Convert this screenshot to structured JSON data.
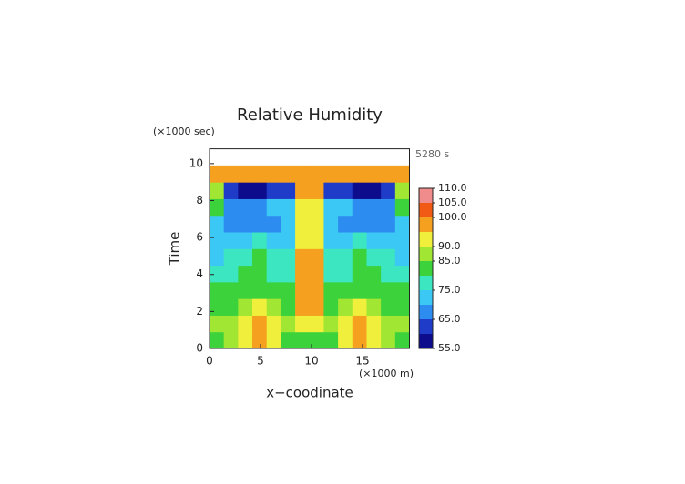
{
  "chart_data": {
    "type": "contour",
    "title": "Relative Humidity",
    "subtitle": "5280 s",
    "x_label": "x−coodinate",
    "x_unit": "(×1000 m)",
    "y_label": "Time",
    "y_unit": "(×1000 sec)",
    "xlim": [
      0,
      19.6
    ],
    "ylim": [
      0,
      10.8
    ],
    "xticks": [
      0,
      5,
      10,
      15
    ],
    "yticks": [
      0,
      2,
      4,
      6,
      8,
      10
    ],
    "x": [
      0.7,
      2.1,
      3.5,
      4.9,
      6.3,
      7.7,
      9.1,
      10.5,
      11.9,
      13.3,
      14.7,
      16.1,
      17.5,
      18.9
    ],
    "y": [
      0.45,
      1.35,
      2.25,
      3.15,
      4.05,
      4.95,
      5.85,
      6.75,
      7.65,
      8.55,
      9.45,
      10.35
    ],
    "z": [
      [
        82,
        88,
        92,
        97,
        92,
        84,
        82,
        82,
        84,
        92,
        97,
        92,
        88,
        82
      ],
      [
        86,
        88,
        90,
        96,
        93,
        88,
        92,
        92,
        88,
        93,
        96,
        90,
        88,
        86
      ],
      [
        83,
        84,
        88,
        90,
        88,
        84,
        95,
        95,
        84,
        88,
        90,
        88,
        84,
        83
      ],
      [
        80,
        81,
        82,
        83,
        82,
        80,
        97,
        97,
        80,
        82,
        83,
        82,
        81,
        80
      ],
      [
        78,
        78,
        80,
        80,
        79,
        78,
        98,
        98,
        78,
        79,
        80,
        80,
        78,
        78
      ],
      [
        74,
        75,
        78,
        82,
        77,
        75,
        95,
        95,
        75,
        77,
        82,
        78,
        75,
        74
      ],
      [
        72,
        72,
        74,
        76,
        74,
        72,
        93,
        93,
        72,
        74,
        76,
        74,
        72,
        72
      ],
      [
        70,
        68,
        68,
        68,
        68,
        70,
        92,
        92,
        70,
        68,
        68,
        68,
        68,
        70
      ],
      [
        80,
        68,
        68,
        68,
        70,
        72,
        92,
        92,
        72,
        70,
        68,
        68,
        68,
        80
      ],
      [
        86,
        60,
        57,
        57,
        60,
        63,
        95,
        95,
        63,
        60,
        57,
        57,
        60,
        86
      ],
      [
        97,
        97,
        97,
        97,
        97,
        97,
        97,
        97,
        97,
        97,
        97,
        97,
        97,
        97
      ],
      [
        null,
        null,
        null,
        null,
        null,
        null,
        null,
        null,
        null,
        null,
        null,
        null,
        null,
        null
      ]
    ],
    "levels": [
      55,
      60,
      65,
      70,
      75,
      80,
      85,
      90,
      95,
      100,
      105,
      110
    ],
    "colors": [
      "#0c0c8c",
      "#1e3cc8",
      "#2d8cf0",
      "#3cc8f5",
      "#3ce6c0",
      "#3cd23c",
      "#a0e632",
      "#f0f03c",
      "#f5a01e",
      "#f05a14",
      "#f08c8c"
    ],
    "colorbar_ticks": [
      {
        "value": 110,
        "label": "110.0"
      },
      {
        "value": 105,
        "label": "105.0"
      },
      {
        "value": 100,
        "label": "100.0"
      },
      {
        "value": 90,
        "label": "90.0"
      },
      {
        "value": 85,
        "label": "85.0"
      },
      {
        "value": 75,
        "label": "75.0"
      },
      {
        "value": 65,
        "label": "65.0"
      },
      {
        "value": 55,
        "label": "55.0"
      }
    ]
  }
}
